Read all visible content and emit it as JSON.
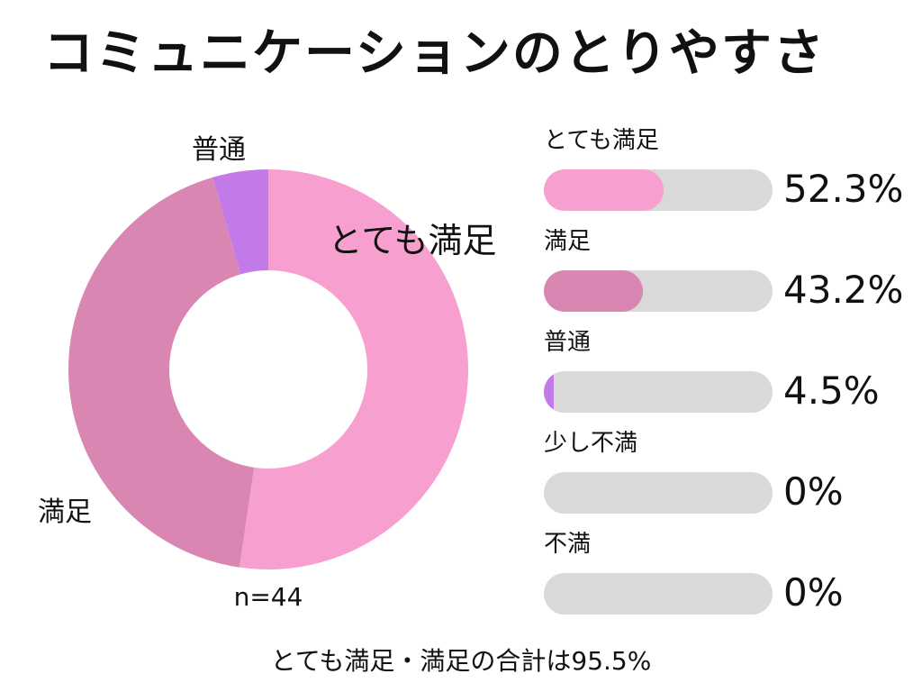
{
  "title": "コミュニケーションのとりやすさ",
  "chart_data": {
    "type": "pie",
    "title": "コミュニケーションのとりやすさ",
    "slices": [
      {
        "label": "とても満足",
        "value": 52.3,
        "display": "52.3%",
        "color": "#f7a0cf"
      },
      {
        "label": "満足",
        "value": 43.2,
        "display": "43.2%",
        "color": "#da86b2"
      },
      {
        "label": "普通",
        "value": 4.5,
        "display": "4.5%",
        "color": "#c27ae8"
      },
      {
        "label": "少し不満",
        "value": 0,
        "display": "0%",
        "color": "#b0b0b0"
      },
      {
        "label": "不満",
        "value": 0,
        "display": "0%",
        "color": "#999999"
      }
    ],
    "sample_size_label": "n=44",
    "summary": "とても満足・満足の合計は95.5%"
  },
  "colors": {
    "bar_track": "#d9d9d9",
    "donut_hole": "#ffffff"
  }
}
